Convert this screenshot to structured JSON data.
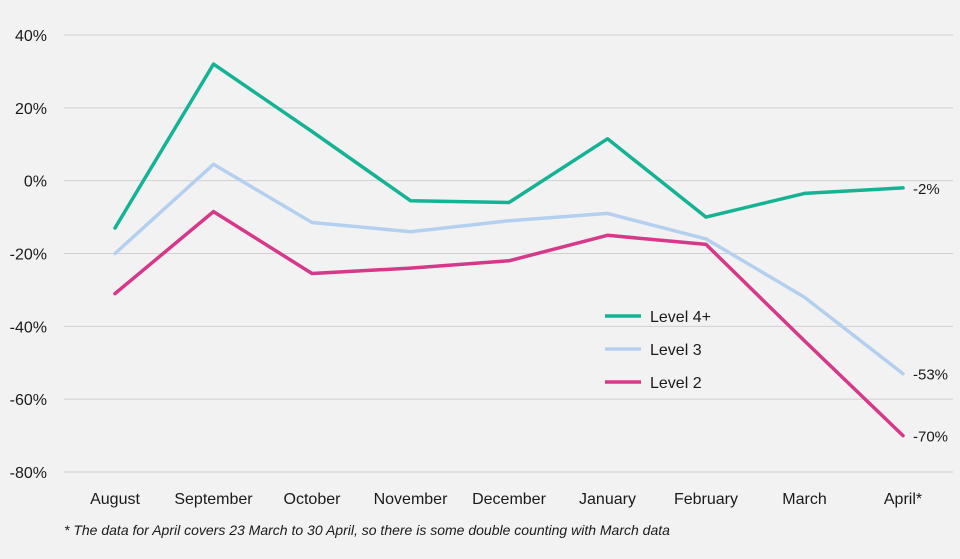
{
  "chart_data": {
    "type": "line",
    "categories": [
      "August",
      "September",
      "October",
      "November",
      "December",
      "January",
      "February",
      "March",
      "April*"
    ],
    "ylim": [
      -80,
      40
    ],
    "yticks": [
      40,
      20,
      0,
      -20,
      -40,
      -60,
      -80
    ],
    "ytick_labels": [
      "40%",
      "20%",
      "0%",
      "-20%",
      "-40%",
      "-60%",
      "-80%"
    ],
    "grid": true,
    "legend_position": "center-right",
    "series": [
      {
        "name": "Level 4+",
        "color": "#14b394",
        "values": [
          -13,
          32,
          13.5,
          -5.5,
          -6,
          11.5,
          -10,
          -3.5,
          -2
        ],
        "end_label": "-2%"
      },
      {
        "name": "Level 3",
        "color": "#b4d0f0",
        "values": [
          -20,
          4.5,
          -11.5,
          -14,
          -11,
          -9,
          -16,
          -32,
          -53
        ],
        "end_label": "-53%"
      },
      {
        "name": "Level 2",
        "color": "#d6388a",
        "values": [
          -31,
          -8.5,
          -25.5,
          -24,
          -22,
          -15,
          -17.5,
          -44,
          -70
        ],
        "end_label": "-70%"
      }
    ],
    "footnote": "* The data for April covers 23 March to 30 April, so there is some double counting with March data"
  }
}
